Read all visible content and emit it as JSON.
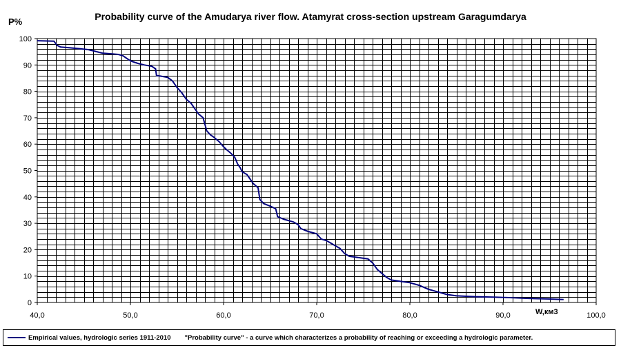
{
  "chart_data": {
    "type": "line",
    "title": "Probability curve of the Amudarya river flow. Atamyrat cross-section upstream Garagumdarya",
    "ylabel": "P%",
    "xlabel": "W,км3",
    "xlim": [
      40,
      100
    ],
    "ylim": [
      0,
      100
    ],
    "x_ticks": [
      "40,0",
      "50,0",
      "60,0",
      "70,0",
      "80,0",
      "90,0",
      "100,0"
    ],
    "y_ticks": [
      "0",
      "10",
      "20",
      "30",
      "40",
      "50",
      "60",
      "70",
      "80",
      "90",
      "100"
    ],
    "grid": true,
    "legend_position": "bottom",
    "series": [
      {
        "name": "Empirical values, hydrologic series 1911-2010",
        "color": "#00007f",
        "x": [
          40.0,
          41.8,
          42.1,
          42.5,
          43.5,
          44.5,
          45.5,
          47.0,
          48.7,
          49.2,
          49.8,
          50.2,
          50.8,
          51.5,
          52.3,
          52.7,
          52.8,
          53.2,
          54.0,
          54.5,
          55.0,
          55.5,
          56.0,
          56.5,
          57.0,
          57.3,
          57.8,
          58.0,
          58.2,
          58.6,
          59.0,
          59.5,
          60.0,
          60.3,
          60.8,
          61.2,
          61.5,
          61.8,
          62.0,
          62.5,
          62.8,
          63.2,
          63.7,
          63.9,
          64.3,
          65.0,
          65.6,
          65.8,
          66.5,
          67.5,
          68.0,
          68.3,
          69.0,
          70.0,
          70.5,
          71.0,
          71.5,
          72.0,
          72.5,
          73.0,
          73.5,
          74.5,
          75.5,
          76.0,
          76.5,
          77.0,
          77.5,
          78.0,
          79.0,
          80.0,
          81.0,
          82.0,
          83.0,
          84.0,
          85.0,
          87.0,
          89.0,
          91.0,
          93.0,
          95.0,
          96.5
        ],
        "y": [
          99.2,
          99.0,
          97.5,
          96.8,
          96.5,
          96.2,
          95.8,
          94.5,
          94.0,
          93.5,
          92.0,
          91.3,
          90.6,
          90.0,
          89.5,
          88.5,
          86.0,
          85.8,
          85.3,
          84.0,
          81.5,
          79.5,
          77.0,
          75.5,
          73.0,
          71.5,
          70.0,
          67.5,
          65.0,
          63.5,
          62.5,
          61.0,
          59.0,
          58.0,
          56.5,
          55.0,
          52.5,
          51.0,
          49.5,
          48.5,
          47.0,
          45.0,
          43.5,
          39.0,
          37.5,
          36.5,
          35.5,
          32.5,
          31.5,
          30.5,
          29.5,
          28.0,
          27.0,
          26.0,
          24.0,
          23.5,
          22.5,
          21.5,
          20.5,
          18.5,
          17.5,
          17.0,
          16.5,
          15.0,
          12.5,
          11.0,
          9.5,
          8.5,
          8.0,
          7.5,
          6.5,
          5.0,
          4.0,
          3.0,
          2.5,
          2.2,
          2.0,
          1.8,
          1.5,
          1.3,
          1.1
        ]
      }
    ],
    "legend_note": "\"Probability curve\" - a curve which characterizes a probability of reaching or exceeding a hydrologic  parameter."
  }
}
